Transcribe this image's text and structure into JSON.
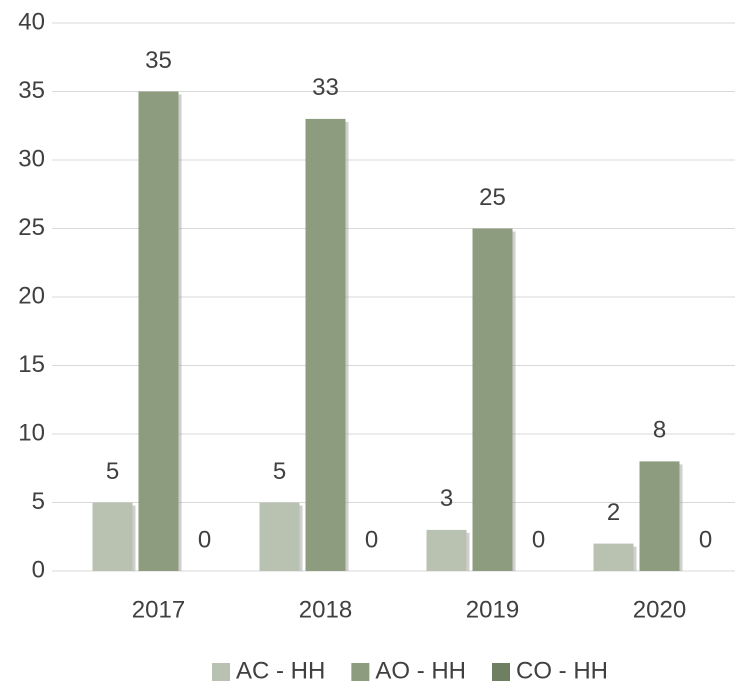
{
  "chart_data": {
    "type": "bar",
    "categories": [
      "2017",
      "2018",
      "2019",
      "2020"
    ],
    "series": [
      {
        "name": "AC - HH",
        "color": "#b9c1b1",
        "values": [
          5,
          5,
          3,
          2
        ]
      },
      {
        "name": "AO - HH",
        "color": "#8d9c7e",
        "values": [
          35,
          33,
          25,
          8
        ]
      },
      {
        "name": "CO - HH",
        "color": "#6f7f61",
        "values": [
          0,
          0,
          0,
          0
        ]
      }
    ],
    "ylim": [
      0,
      40
    ],
    "yticks": [
      0,
      5,
      10,
      15,
      20,
      25,
      30,
      35,
      40
    ],
    "grid": true,
    "legend": "bottom"
  }
}
